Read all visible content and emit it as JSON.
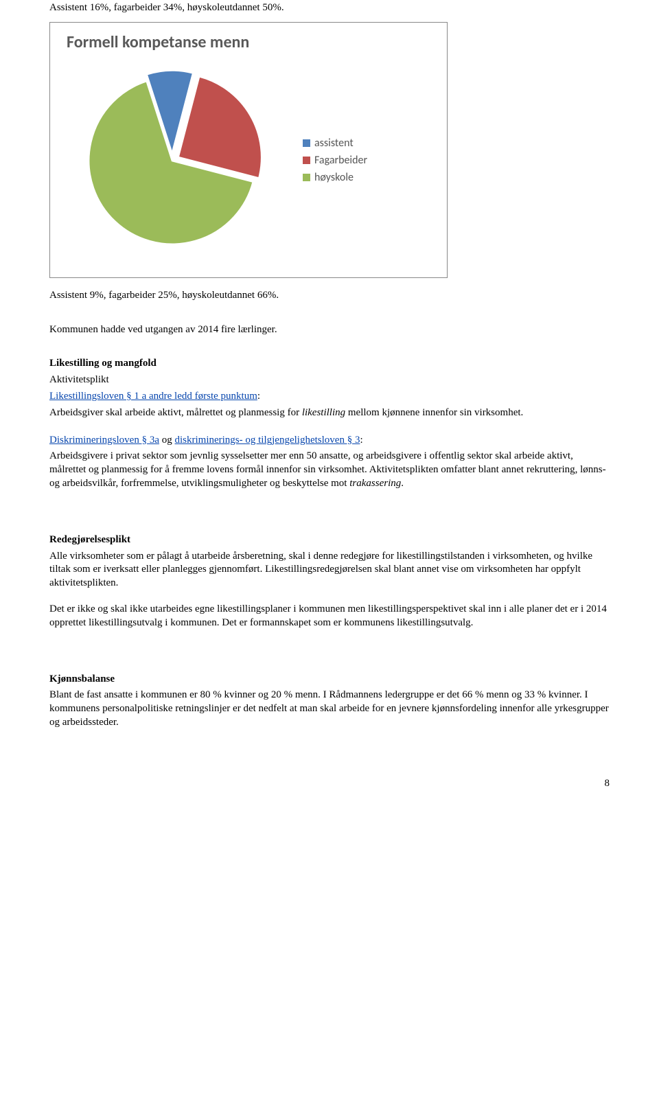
{
  "top_line": "Assistent 16%, fagarbeider 34%, høyskoleutdannet 50%.",
  "chart": {
    "type": "pie",
    "title": "Formell kompetanse menn",
    "background_color": "#ffffff",
    "border_color": "#888888",
    "title_color": "#595959",
    "title_fontsize": 24,
    "title_font": "Calibri",
    "slices": [
      {
        "label": "assistent",
        "value": 9,
        "color": "#4f81bd",
        "explode": 0.08
      },
      {
        "label": "Fagarbeider",
        "value": 25,
        "color": "#c0504d",
        "explode": 0.08
      },
      {
        "label": "høyskole",
        "value": 66,
        "color": "#9bbb59",
        "explode": 0.0
      }
    ],
    "legend": {
      "position": "right",
      "fontsize": 16,
      "font": "Calibri",
      "text_color": "#555555",
      "swatch_size": 11,
      "items": [
        "assistent",
        "Fagarbeider",
        "høyskole"
      ]
    },
    "slice_gap_color": "#ffffff"
  },
  "line_after_chart": "Assistent 9%, fagarbeider 25%, høyskoleutdannet 66%.",
  "line_kommunen": "Kommunen hadde ved utgangen av 2014 fire lærlinger.",
  "sec1": {
    "h_bold": "Likestilling og mangfold",
    "h_plain": "Aktivitetsplikt",
    "link1": "Likestillingsloven § 1 a andre ledd første punktum",
    "colon1": ":",
    "body1_a": "Arbeidsgiver skal arbeide aktivt, målrettet og planmessig for ",
    "body1_it": "likestilling",
    "body1_b": " mellom kjønnene innenfor sin virksomhet."
  },
  "sec2": {
    "link1": "Diskrimineringsloven § 3a",
    "mid": " og ",
    "link2": "diskriminerings- og tilgjengelighetsloven § 3",
    "colon": ":",
    "body_a": "Arbeidsgivere i privat sektor som jevnlig sysselsetter mer enn 50 ansatte, og arbeidsgivere i offentlig sektor skal arbeide aktivt, målrettet og planmessig for å fremme lovens formål innenfor sin virksomhet. Aktivitetsplikten omfatter blant annet rekruttering, lønns- og arbeidsvilkår, forfremmelse, utviklingsmuligheter og beskyttelse mot ",
    "body_it": "trakassering",
    "body_b": "."
  },
  "sec3": {
    "h": "Redegjørelsesplikt",
    "p1": "Alle virksomheter som er pålagt å utarbeide årsberetning, skal i denne redegjøre for likestillingstilstanden i virksomheten, og hvilke tiltak som er iverksatt eller planlegges gjennomført. Likestillingsredegjørelsen skal blant annet vise om virksomheten har oppfylt aktivitetsplikten.",
    "p2": "Det er ikke og skal ikke utarbeides egne likestillingsplaner i kommunen men likestillingsperspektivet skal inn i alle planer det er i 2014 opprettet likestillingsutvalg i kommunen. Det er formannskapet som er kommunens likestillingsutvalg."
  },
  "sec4": {
    "h": "Kjønnsbalanse",
    "p1": "Blant de fast ansatte i kommunen er 80 % kvinner og 20 % menn. I Rådmannens ledergruppe er det 66 % menn og 33 % kvinner. I kommunens personalpolitiske retningslinjer er det nedfelt at man skal arbeide for en jevnere kjønnsfordeling innenfor alle yrkesgrupper og arbeidssteder."
  },
  "page_number": "8"
}
